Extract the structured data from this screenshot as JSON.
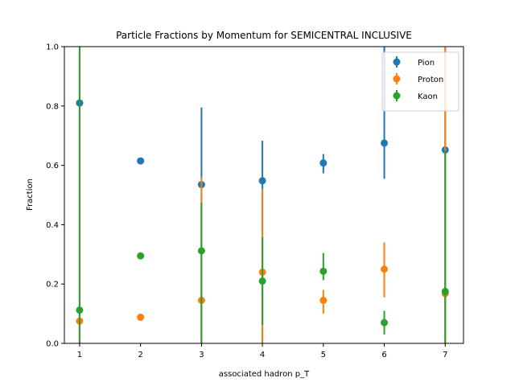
{
  "chart_data": {
    "type": "scatter",
    "title": "Particle Fractions by Momentum for SEMICENTRAL INCLUSIVE",
    "xlabel": "associated hadron p_T",
    "ylabel": "Fraction",
    "xlim": [
      0.75,
      7.3
    ],
    "ylim": [
      0,
      1.0
    ],
    "xticks": [
      "1",
      "2",
      "3",
      "4",
      "5",
      "6",
      "7"
    ],
    "yticks": [
      "0.0",
      "0.2",
      "0.4",
      "0.6",
      "0.8",
      "1.0"
    ],
    "grid": false,
    "legend_position": "top-right",
    "x": [
      1,
      2,
      3,
      4,
      5,
      6,
      7
    ],
    "series": [
      {
        "name": "Pion",
        "color": "#1f77b4",
        "values": [
          0.81,
          0.615,
          0.535,
          0.548,
          0.608,
          0.675,
          0.652
        ],
        "err_low": [
          0.81,
          0.01,
          0.535,
          0.548,
          0.035,
          0.12,
          0.652
        ],
        "err_high": [
          0.19,
          0.01,
          0.26,
          0.135,
          0.03,
          0.325,
          0.348
        ]
      },
      {
        "name": "Proton",
        "color": "#ff7f0e",
        "values": [
          0.075,
          0.088,
          0.145,
          0.24,
          0.145,
          0.25,
          0.168
        ],
        "err_low": [
          0.075,
          0.004,
          0.145,
          0.24,
          0.045,
          0.095,
          0.168
        ],
        "err_high": [
          0.01,
          0.004,
          0.415,
          0.28,
          0.035,
          0.09,
          0.832
        ]
      },
      {
        "name": "Kaon",
        "color": "#2ca02c",
        "values": [
          0.112,
          0.295,
          0.312,
          0.21,
          0.243,
          0.07,
          0.175
        ],
        "err_low": [
          0.112,
          0.005,
          0.312,
          0.148,
          0.03,
          0.04,
          0.175
        ],
        "err_high": [
          0.888,
          0.005,
          0.163,
          0.148,
          0.062,
          0.04,
          0.475
        ]
      }
    ]
  }
}
